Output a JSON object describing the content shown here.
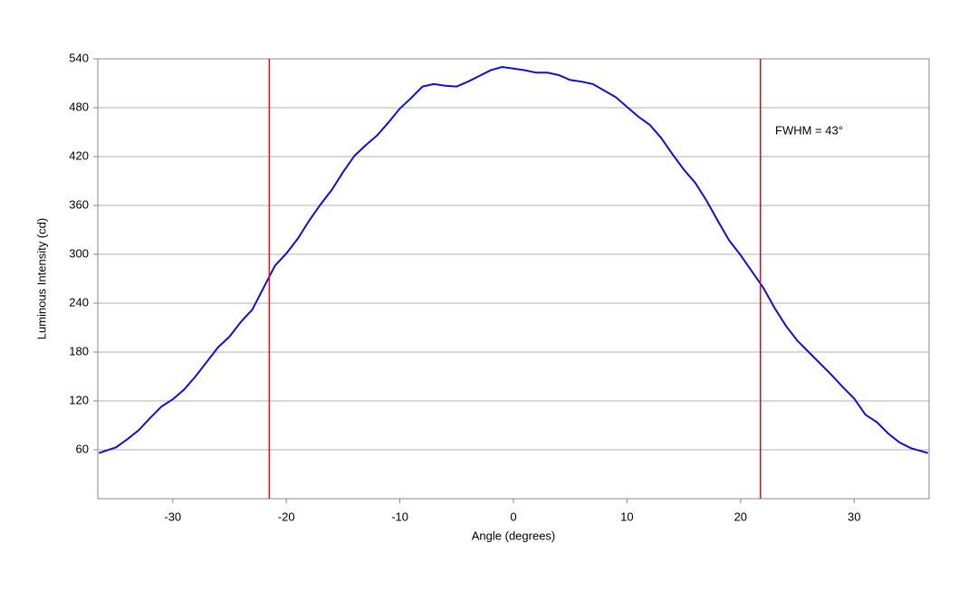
{
  "chart_data": {
    "type": "line",
    "x_label": "Angle (degrees)",
    "y_label": "Luminous Intensity (cd)",
    "annotation": "FWHM = 43°",
    "x": [
      -36.5,
      -35,
      -34,
      -33,
      -32,
      -31,
      -30,
      -29,
      -28,
      -27,
      -26,
      -25,
      -24,
      -23,
      -22,
      -21,
      -20,
      -19,
      -18,
      -17,
      -16,
      -15,
      -14,
      -13,
      -12,
      -11,
      -10,
      -9,
      -8,
      -7,
      -6,
      -5,
      -4,
      -3,
      -2,
      -1,
      0,
      1,
      2,
      3,
      4,
      5,
      6,
      7,
      8,
      9,
      10,
      11,
      12,
      13,
      14,
      15,
      16,
      17,
      18,
      19,
      20,
      21,
      22,
      23,
      24,
      25,
      26,
      27,
      28,
      29,
      30,
      31,
      32,
      33,
      34,
      35,
      36.5
    ],
    "series": [
      {
        "color": "#1010d0",
        "values": [
          56,
          63,
          73,
          84,
          99,
          113,
          122,
          134,
          150,
          168,
          186,
          199,
          217,
          232,
          259,
          286,
          301,
          319,
          341,
          361,
          379,
          401,
          421,
          434,
          446,
          462,
          479,
          492,
          506,
          509,
          507,
          506,
          512,
          519,
          526,
          530,
          528,
          526,
          523,
          523,
          520,
          514,
          512,
          509,
          501,
          493,
          481,
          469,
          459,
          443,
          423,
          404,
          388,
          366,
          341,
          317,
          299,
          279,
          259,
          234,
          212,
          194,
          180,
          166,
          152,
          137,
          123,
          103,
          94,
          80,
          69,
          62,
          56
        ]
      }
    ],
    "reference_lines": {
      "color": "#e01010",
      "x": [
        -21.5,
        21.75
      ]
    },
    "xlim": [
      -36.6,
      36.6
    ],
    "xticks": [
      -30,
      -20,
      -10,
      0,
      10,
      20,
      30
    ],
    "ylim": [
      0,
      540
    ],
    "yticks": [
      60,
      120,
      180,
      240,
      300,
      360,
      420,
      480,
      540
    ],
    "grid": true
  }
}
